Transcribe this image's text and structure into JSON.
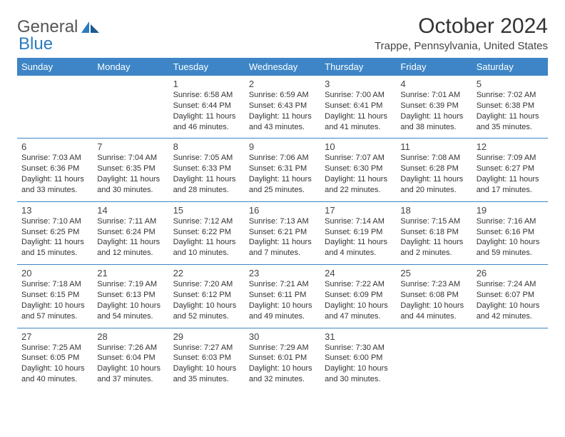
{
  "brand": {
    "name_gray": "General",
    "name_blue": "Blue"
  },
  "title": "October 2024",
  "location": "Trappe, Pennsylvania, United States",
  "colors": {
    "header_bg": "#3d85c6",
    "header_text": "#ffffff",
    "rule": "#3d85c6",
    "logo_gray": "#555555",
    "logo_blue": "#2b7bbf"
  },
  "fonts": {
    "title_size": 30,
    "location_size": 15,
    "dayheader_size": 13,
    "cell_size": 11
  },
  "day_headers": [
    "Sunday",
    "Monday",
    "Tuesday",
    "Wednesday",
    "Thursday",
    "Friday",
    "Saturday"
  ],
  "weeks": [
    [
      null,
      null,
      {
        "n": "1",
        "sunrise": "6:58 AM",
        "sunset": "6:44 PM",
        "daylight": "11 hours and 46 minutes."
      },
      {
        "n": "2",
        "sunrise": "6:59 AM",
        "sunset": "6:43 PM",
        "daylight": "11 hours and 43 minutes."
      },
      {
        "n": "3",
        "sunrise": "7:00 AM",
        "sunset": "6:41 PM",
        "daylight": "11 hours and 41 minutes."
      },
      {
        "n": "4",
        "sunrise": "7:01 AM",
        "sunset": "6:39 PM",
        "daylight": "11 hours and 38 minutes."
      },
      {
        "n": "5",
        "sunrise": "7:02 AM",
        "sunset": "6:38 PM",
        "daylight": "11 hours and 35 minutes."
      }
    ],
    [
      {
        "n": "6",
        "sunrise": "7:03 AM",
        "sunset": "6:36 PM",
        "daylight": "11 hours and 33 minutes."
      },
      {
        "n": "7",
        "sunrise": "7:04 AM",
        "sunset": "6:35 PM",
        "daylight": "11 hours and 30 minutes."
      },
      {
        "n": "8",
        "sunrise": "7:05 AM",
        "sunset": "6:33 PM",
        "daylight": "11 hours and 28 minutes."
      },
      {
        "n": "9",
        "sunrise": "7:06 AM",
        "sunset": "6:31 PM",
        "daylight": "11 hours and 25 minutes."
      },
      {
        "n": "10",
        "sunrise": "7:07 AM",
        "sunset": "6:30 PM",
        "daylight": "11 hours and 22 minutes."
      },
      {
        "n": "11",
        "sunrise": "7:08 AM",
        "sunset": "6:28 PM",
        "daylight": "11 hours and 20 minutes."
      },
      {
        "n": "12",
        "sunrise": "7:09 AM",
        "sunset": "6:27 PM",
        "daylight": "11 hours and 17 minutes."
      }
    ],
    [
      {
        "n": "13",
        "sunrise": "7:10 AM",
        "sunset": "6:25 PM",
        "daylight": "11 hours and 15 minutes."
      },
      {
        "n": "14",
        "sunrise": "7:11 AM",
        "sunset": "6:24 PM",
        "daylight": "11 hours and 12 minutes."
      },
      {
        "n": "15",
        "sunrise": "7:12 AM",
        "sunset": "6:22 PM",
        "daylight": "11 hours and 10 minutes."
      },
      {
        "n": "16",
        "sunrise": "7:13 AM",
        "sunset": "6:21 PM",
        "daylight": "11 hours and 7 minutes."
      },
      {
        "n": "17",
        "sunrise": "7:14 AM",
        "sunset": "6:19 PM",
        "daylight": "11 hours and 4 minutes."
      },
      {
        "n": "18",
        "sunrise": "7:15 AM",
        "sunset": "6:18 PM",
        "daylight": "11 hours and 2 minutes."
      },
      {
        "n": "19",
        "sunrise": "7:16 AM",
        "sunset": "6:16 PM",
        "daylight": "10 hours and 59 minutes."
      }
    ],
    [
      {
        "n": "20",
        "sunrise": "7:18 AM",
        "sunset": "6:15 PM",
        "daylight": "10 hours and 57 minutes."
      },
      {
        "n": "21",
        "sunrise": "7:19 AM",
        "sunset": "6:13 PM",
        "daylight": "10 hours and 54 minutes."
      },
      {
        "n": "22",
        "sunrise": "7:20 AM",
        "sunset": "6:12 PM",
        "daylight": "10 hours and 52 minutes."
      },
      {
        "n": "23",
        "sunrise": "7:21 AM",
        "sunset": "6:11 PM",
        "daylight": "10 hours and 49 minutes."
      },
      {
        "n": "24",
        "sunrise": "7:22 AM",
        "sunset": "6:09 PM",
        "daylight": "10 hours and 47 minutes."
      },
      {
        "n": "25",
        "sunrise": "7:23 AM",
        "sunset": "6:08 PM",
        "daylight": "10 hours and 44 minutes."
      },
      {
        "n": "26",
        "sunrise": "7:24 AM",
        "sunset": "6:07 PM",
        "daylight": "10 hours and 42 minutes."
      }
    ],
    [
      {
        "n": "27",
        "sunrise": "7:25 AM",
        "sunset": "6:05 PM",
        "daylight": "10 hours and 40 minutes."
      },
      {
        "n": "28",
        "sunrise": "7:26 AM",
        "sunset": "6:04 PM",
        "daylight": "10 hours and 37 minutes."
      },
      {
        "n": "29",
        "sunrise": "7:27 AM",
        "sunset": "6:03 PM",
        "daylight": "10 hours and 35 minutes."
      },
      {
        "n": "30",
        "sunrise": "7:29 AM",
        "sunset": "6:01 PM",
        "daylight": "10 hours and 32 minutes."
      },
      {
        "n": "31",
        "sunrise": "7:30 AM",
        "sunset": "6:00 PM",
        "daylight": "10 hours and 30 minutes."
      },
      null,
      null
    ]
  ],
  "labels": {
    "sunrise": "Sunrise:",
    "sunset": "Sunset:",
    "daylight": "Daylight:"
  }
}
